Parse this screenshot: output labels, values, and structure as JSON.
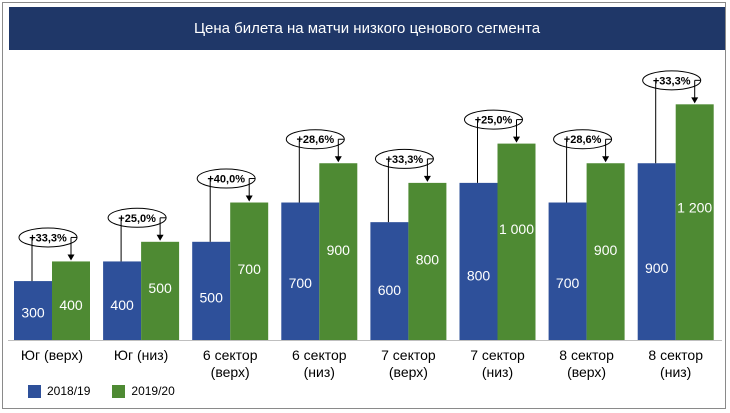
{
  "chart_data": {
    "type": "bar",
    "title": "Цена билета на матчи низкого ценового сегмента",
    "categories": [
      [
        "Юг (верх)"
      ],
      [
        "Юг (низ)"
      ],
      [
        "6 сектор",
        "(верх)"
      ],
      [
        "6 сектор",
        "(низ)"
      ],
      [
        "7 сектор",
        "(верх)"
      ],
      [
        "7 сектор",
        "(низ)"
      ],
      [
        "8 сектор",
        "(верх)"
      ],
      [
        "8 сектор",
        "(низ)"
      ]
    ],
    "series": [
      {
        "name": "2018/19",
        "color": "#2e509a",
        "values": [
          300,
          400,
          500,
          700,
          600,
          800,
          700,
          900
        ],
        "value_labels": [
          "300",
          "400",
          "500",
          "700",
          "600",
          "800",
          "700",
          "900"
        ]
      },
      {
        "name": "2019/20",
        "color": "#4e8a33",
        "values": [
          400,
          500,
          700,
          900,
          800,
          1000,
          900,
          1200
        ],
        "value_labels": [
          "400",
          "500",
          "700",
          "900",
          "800",
          "1 000",
          "900",
          "1 200"
        ]
      }
    ],
    "change_labels": [
      "+33,3%",
      "+25,0%",
      "+40,0%",
      "+28,6%",
      "+33,3%",
      "+25,0%",
      "+28,6%",
      "+33,3%"
    ],
    "ylim": [
      0,
      1400
    ],
    "grid": false,
    "legend_position": "bottom-left"
  }
}
